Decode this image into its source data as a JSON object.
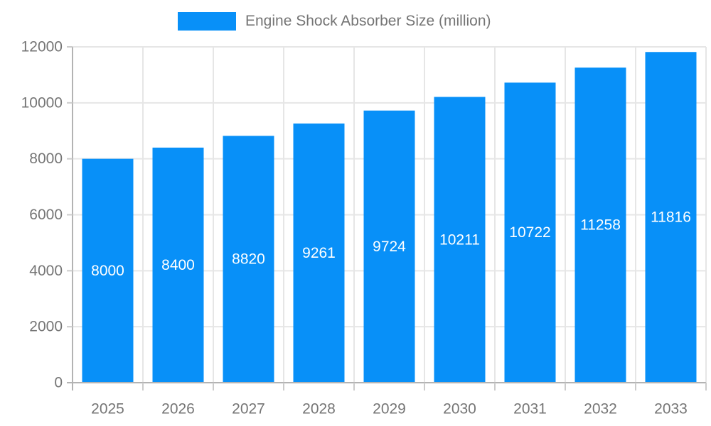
{
  "chart_data": {
    "type": "bar",
    "title": "",
    "categories": [
      "2025",
      "2026",
      "2027",
      "2028",
      "2029",
      "2030",
      "2031",
      "2032",
      "2033"
    ],
    "series": [
      {
        "name": "Engine Shock Absorber Size (million)",
        "values": [
          8000,
          8400,
          8820,
          9261,
          9724,
          10211,
          10722,
          11258,
          11816
        ]
      }
    ],
    "data_labels": [
      "8000",
      "8400",
      "8820",
      "9261",
      "9724",
      "10211",
      "10722",
      "11258",
      "11816"
    ],
    "xlabel": "",
    "ylabel": "",
    "ylim": [
      0,
      12000
    ],
    "yticks": [
      0,
      2000,
      4000,
      6000,
      8000,
      10000,
      12000
    ],
    "grid": true,
    "legend_position": "top",
    "colors": {
      "bar": "#0890f8",
      "bar_label_text": "#ffffff",
      "axis_text": "#757575",
      "gridline": "#e6e6e6",
      "axis_line": "#b3b3b3",
      "tick": "#cccccc"
    }
  }
}
